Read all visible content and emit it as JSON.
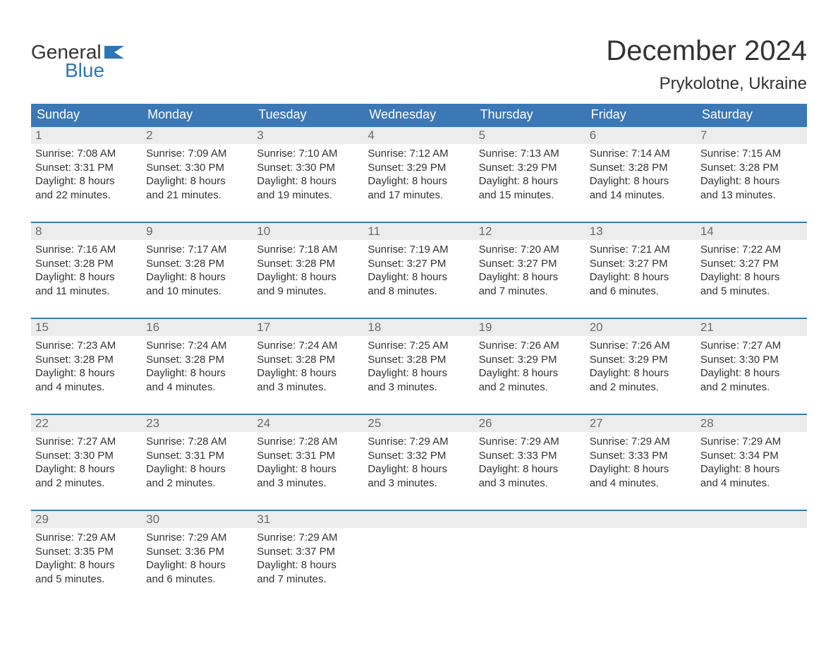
{
  "brand": {
    "general": "General",
    "blue": "Blue",
    "flag_color": "#2e75b6"
  },
  "title": "December 2024",
  "location": "Prykolotne, Ukraine",
  "colors": {
    "header_bg": "#3b78b5",
    "header_text": "#ffffff",
    "daynum_bg": "#ececec",
    "daynum_text": "#6b6b6b",
    "body_text": "#333333",
    "week_border": "#3b78b5",
    "page_bg": "#ffffff"
  },
  "typography": {
    "title_fontsize": 40,
    "location_fontsize": 24,
    "dayheader_fontsize": 18,
    "cell_fontsize": 15
  },
  "day_headers": [
    "Sunday",
    "Monday",
    "Tuesday",
    "Wednesday",
    "Thursday",
    "Friday",
    "Saturday"
  ],
  "weeks": [
    [
      {
        "n": "1",
        "l1": "Sunrise: 7:08 AM",
        "l2": "Sunset: 3:31 PM",
        "l3": "Daylight: 8 hours",
        "l4": "and 22 minutes."
      },
      {
        "n": "2",
        "l1": "Sunrise: 7:09 AM",
        "l2": "Sunset: 3:30 PM",
        "l3": "Daylight: 8 hours",
        "l4": "and 21 minutes."
      },
      {
        "n": "3",
        "l1": "Sunrise: 7:10 AM",
        "l2": "Sunset: 3:30 PM",
        "l3": "Daylight: 8 hours",
        "l4": "and 19 minutes."
      },
      {
        "n": "4",
        "l1": "Sunrise: 7:12 AM",
        "l2": "Sunset: 3:29 PM",
        "l3": "Daylight: 8 hours",
        "l4": "and 17 minutes."
      },
      {
        "n": "5",
        "l1": "Sunrise: 7:13 AM",
        "l2": "Sunset: 3:29 PM",
        "l3": "Daylight: 8 hours",
        "l4": "and 15 minutes."
      },
      {
        "n": "6",
        "l1": "Sunrise: 7:14 AM",
        "l2": "Sunset: 3:28 PM",
        "l3": "Daylight: 8 hours",
        "l4": "and 14 minutes."
      },
      {
        "n": "7",
        "l1": "Sunrise: 7:15 AM",
        "l2": "Sunset: 3:28 PM",
        "l3": "Daylight: 8 hours",
        "l4": "and 13 minutes."
      }
    ],
    [
      {
        "n": "8",
        "l1": "Sunrise: 7:16 AM",
        "l2": "Sunset: 3:28 PM",
        "l3": "Daylight: 8 hours",
        "l4": "and 11 minutes."
      },
      {
        "n": "9",
        "l1": "Sunrise: 7:17 AM",
        "l2": "Sunset: 3:28 PM",
        "l3": "Daylight: 8 hours",
        "l4": "and 10 minutes."
      },
      {
        "n": "10",
        "l1": "Sunrise: 7:18 AM",
        "l2": "Sunset: 3:28 PM",
        "l3": "Daylight: 8 hours",
        "l4": "and 9 minutes."
      },
      {
        "n": "11",
        "l1": "Sunrise: 7:19 AM",
        "l2": "Sunset: 3:27 PM",
        "l3": "Daylight: 8 hours",
        "l4": "and 8 minutes."
      },
      {
        "n": "12",
        "l1": "Sunrise: 7:20 AM",
        "l2": "Sunset: 3:27 PM",
        "l3": "Daylight: 8 hours",
        "l4": "and 7 minutes."
      },
      {
        "n": "13",
        "l1": "Sunrise: 7:21 AM",
        "l2": "Sunset: 3:27 PM",
        "l3": "Daylight: 8 hours",
        "l4": "and 6 minutes."
      },
      {
        "n": "14",
        "l1": "Sunrise: 7:22 AM",
        "l2": "Sunset: 3:27 PM",
        "l3": "Daylight: 8 hours",
        "l4": "and 5 minutes."
      }
    ],
    [
      {
        "n": "15",
        "l1": "Sunrise: 7:23 AM",
        "l2": "Sunset: 3:28 PM",
        "l3": "Daylight: 8 hours",
        "l4": "and 4 minutes."
      },
      {
        "n": "16",
        "l1": "Sunrise: 7:24 AM",
        "l2": "Sunset: 3:28 PM",
        "l3": "Daylight: 8 hours",
        "l4": "and 4 minutes."
      },
      {
        "n": "17",
        "l1": "Sunrise: 7:24 AM",
        "l2": "Sunset: 3:28 PM",
        "l3": "Daylight: 8 hours",
        "l4": "and 3 minutes."
      },
      {
        "n": "18",
        "l1": "Sunrise: 7:25 AM",
        "l2": "Sunset: 3:28 PM",
        "l3": "Daylight: 8 hours",
        "l4": "and 3 minutes."
      },
      {
        "n": "19",
        "l1": "Sunrise: 7:26 AM",
        "l2": "Sunset: 3:29 PM",
        "l3": "Daylight: 8 hours",
        "l4": "and 2 minutes."
      },
      {
        "n": "20",
        "l1": "Sunrise: 7:26 AM",
        "l2": "Sunset: 3:29 PM",
        "l3": "Daylight: 8 hours",
        "l4": "and 2 minutes."
      },
      {
        "n": "21",
        "l1": "Sunrise: 7:27 AM",
        "l2": "Sunset: 3:30 PM",
        "l3": "Daylight: 8 hours",
        "l4": "and 2 minutes."
      }
    ],
    [
      {
        "n": "22",
        "l1": "Sunrise: 7:27 AM",
        "l2": "Sunset: 3:30 PM",
        "l3": "Daylight: 8 hours",
        "l4": "and 2 minutes."
      },
      {
        "n": "23",
        "l1": "Sunrise: 7:28 AM",
        "l2": "Sunset: 3:31 PM",
        "l3": "Daylight: 8 hours",
        "l4": "and 2 minutes."
      },
      {
        "n": "24",
        "l1": "Sunrise: 7:28 AM",
        "l2": "Sunset: 3:31 PM",
        "l3": "Daylight: 8 hours",
        "l4": "and 3 minutes."
      },
      {
        "n": "25",
        "l1": "Sunrise: 7:29 AM",
        "l2": "Sunset: 3:32 PM",
        "l3": "Daylight: 8 hours",
        "l4": "and 3 minutes."
      },
      {
        "n": "26",
        "l1": "Sunrise: 7:29 AM",
        "l2": "Sunset: 3:33 PM",
        "l3": "Daylight: 8 hours",
        "l4": "and 3 minutes."
      },
      {
        "n": "27",
        "l1": "Sunrise: 7:29 AM",
        "l2": "Sunset: 3:33 PM",
        "l3": "Daylight: 8 hours",
        "l4": "and 4 minutes."
      },
      {
        "n": "28",
        "l1": "Sunrise: 7:29 AM",
        "l2": "Sunset: 3:34 PM",
        "l3": "Daylight: 8 hours",
        "l4": "and 4 minutes."
      }
    ],
    [
      {
        "n": "29",
        "l1": "Sunrise: 7:29 AM",
        "l2": "Sunset: 3:35 PM",
        "l3": "Daylight: 8 hours",
        "l4": "and 5 minutes."
      },
      {
        "n": "30",
        "l1": "Sunrise: 7:29 AM",
        "l2": "Sunset: 3:36 PM",
        "l3": "Daylight: 8 hours",
        "l4": "and 6 minutes."
      },
      {
        "n": "31",
        "l1": "Sunrise: 7:29 AM",
        "l2": "Sunset: 3:37 PM",
        "l3": "Daylight: 8 hours",
        "l4": "and 7 minutes."
      },
      {
        "empty": true
      },
      {
        "empty": true
      },
      {
        "empty": true
      },
      {
        "empty": true
      }
    ]
  ]
}
